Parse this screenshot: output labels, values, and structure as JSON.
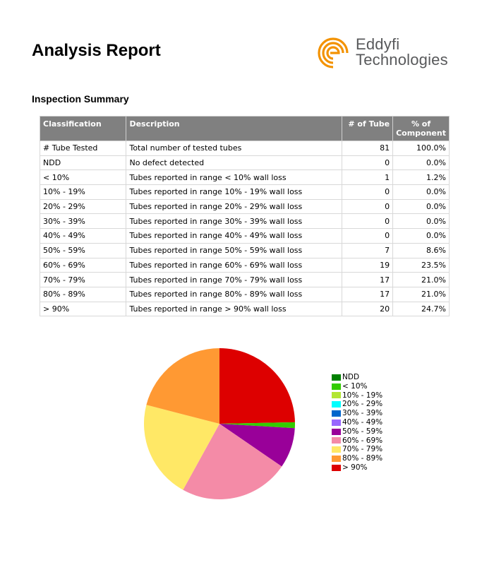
{
  "header": {
    "title": "Analysis Report",
    "logo_text_1": "Eddyfi",
    "logo_text_2": "Technologies",
    "logo_color": "#f39200"
  },
  "section_title": "Inspection Summary",
  "table": {
    "columns": [
      "Classification",
      "Description",
      "# of Tube",
      "% of Component"
    ],
    "rows": [
      [
        "# Tube Tested",
        "Total number of tested tubes",
        "81",
        "100.0%"
      ],
      [
        "NDD",
        "No defect detected",
        "0",
        "0.0%"
      ],
      [
        "< 10%",
        "Tubes reported in range < 10% wall loss",
        "1",
        "1.2%"
      ],
      [
        "10% - 19%",
        "Tubes reported in range 10% - 19% wall loss",
        "0",
        "0.0%"
      ],
      [
        "20% - 29%",
        "Tubes reported in range 20% - 29% wall loss",
        "0",
        "0.0%"
      ],
      [
        "30% - 39%",
        "Tubes reported in range 30% - 39% wall loss",
        "0",
        "0.0%"
      ],
      [
        "40% - 49%",
        "Tubes reported in range 40% - 49% wall loss",
        "0",
        "0.0%"
      ],
      [
        "50% - 59%",
        "Tubes reported in range 50% - 59% wall loss",
        "7",
        "8.6%"
      ],
      [
        "60% - 69%",
        "Tubes reported in range 60% - 69% wall loss",
        "19",
        "23.5%"
      ],
      [
        "70% - 79%",
        "Tubes reported in range 70% - 79% wall loss",
        "17",
        "21.0%"
      ],
      [
        "80% - 89%",
        "Tubes reported in range 80% - 89% wall loss",
        "17",
        "21.0%"
      ],
      [
        "> 90%",
        "Tubes reported in range > 90% wall loss",
        "20",
        "24.7%"
      ]
    ]
  },
  "chart_data": {
    "type": "pie",
    "categories": [
      "NDD",
      "< 10%",
      "10% - 19%",
      "20% - 29%",
      "30% - 39%",
      "40% - 49%",
      "50% - 59%",
      "60% - 69%",
      "70% - 79%",
      "80% - 89%",
      "> 90%"
    ],
    "values": [
      0,
      1,
      0,
      0,
      0,
      0,
      7,
      19,
      17,
      17,
      20
    ],
    "colors": [
      "#008000",
      "#33cc00",
      "#b3e633",
      "#00ffff",
      "#0066cc",
      "#9966ff",
      "#990099",
      "#f48ba7",
      "#ffe866",
      "#ff9933",
      "#dd0000"
    ],
    "draw_order": [
      "> 90%",
      "< 10%",
      "50% - 59%",
      "60% - 69%",
      "70% - 79%",
      "80% - 89%"
    ],
    "legend_position": "right"
  }
}
